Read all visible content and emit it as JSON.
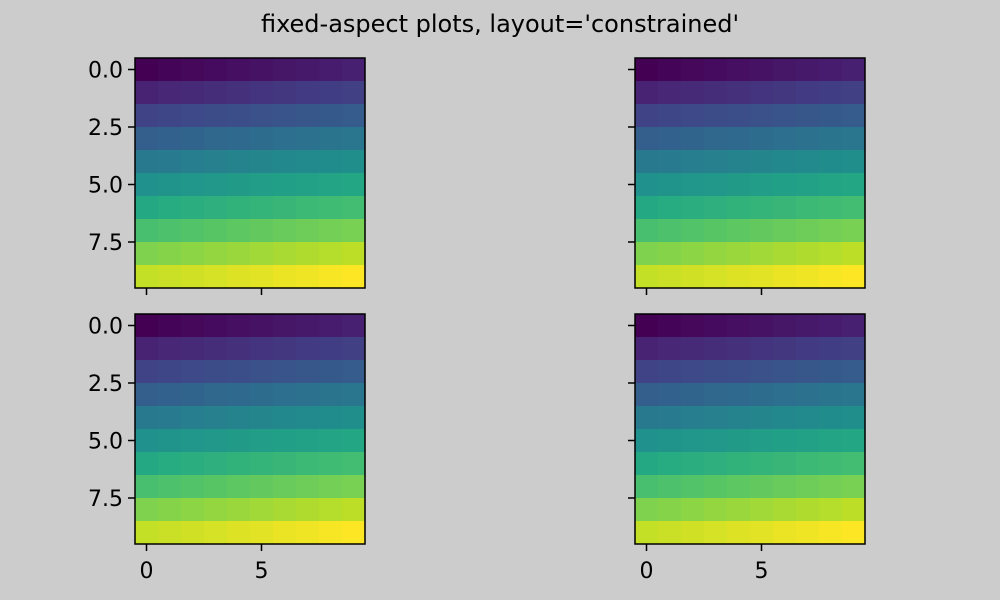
{
  "figure": {
    "title": "fixed-aspect plots, layout='constrained'",
    "background_color": "#cccccc",
    "colormap": "viridis"
  },
  "chart_data": [
    {
      "type": "heatmap",
      "position": "top-left",
      "xlim": [
        -0.5,
        9.5
      ],
      "ylim": [
        9.5,
        -0.5
      ],
      "xticks": [
        0,
        5
      ],
      "xtick_labels": [
        "",
        ""
      ],
      "yticks": [
        0,
        2.5,
        5,
        7.5
      ],
      "ytick_labels": [
        "0.0",
        "2.5",
        "5.0",
        "7.5"
      ],
      "data": "z = 10*row + col, row 0..9, col 0..9"
    },
    {
      "type": "heatmap",
      "position": "top-right",
      "xlim": [
        -0.5,
        9.5
      ],
      "ylim": [
        9.5,
        -0.5
      ],
      "xticks": [
        0,
        5
      ],
      "xtick_labels": [
        "",
        ""
      ],
      "yticks": [
        0,
        2.5,
        5,
        7.5
      ],
      "ytick_labels": [
        "",
        "",
        "",
        ""
      ],
      "data": "z = 10*row + col, row 0..9, col 0..9"
    },
    {
      "type": "heatmap",
      "position": "bottom-left",
      "xlim": [
        -0.5,
        9.5
      ],
      "ylim": [
        9.5,
        -0.5
      ],
      "xticks": [
        0,
        5
      ],
      "xtick_labels": [
        "0",
        "5"
      ],
      "yticks": [
        0,
        2.5,
        5,
        7.5
      ],
      "ytick_labels": [
        "0.0",
        "2.5",
        "5.0",
        "7.5"
      ],
      "data": "z = 10*row + col, row 0..9, col 0..9"
    },
    {
      "type": "heatmap",
      "position": "bottom-right",
      "xlim": [
        -0.5,
        9.5
      ],
      "ylim": [
        9.5,
        -0.5
      ],
      "xticks": [
        0,
        5
      ],
      "xtick_labels": [
        "0",
        "5"
      ],
      "yticks": [
        0,
        2.5,
        5,
        7.5
      ],
      "ytick_labels": [
        "",
        "",
        "",
        ""
      ],
      "data": "z = 10*row + col, row 0..9, col 0..9"
    }
  ]
}
